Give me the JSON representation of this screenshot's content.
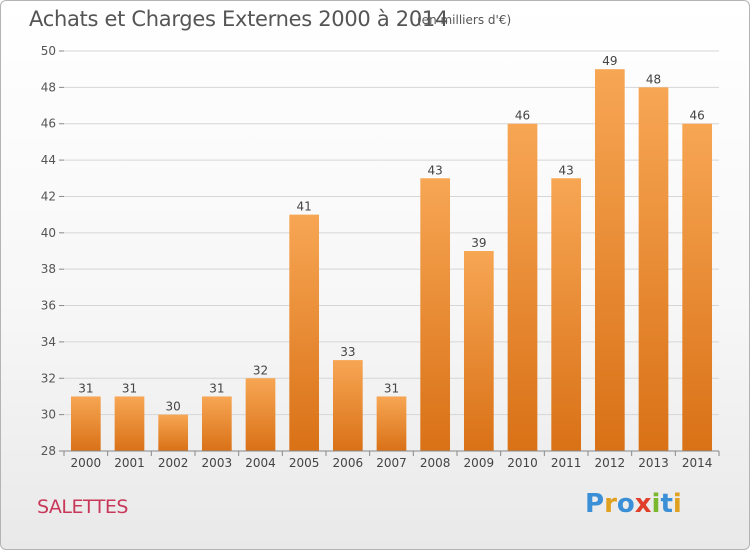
{
  "chart_data": {
    "type": "bar",
    "title": "Achats et Charges Externes 2000 à 2014",
    "subtitle": "(en milliers d'€)",
    "categories": [
      "2000",
      "2001",
      "2002",
      "2003",
      "2004",
      "2005",
      "2006",
      "2007",
      "2008",
      "2009",
      "2010",
      "2011",
      "2012",
      "2013",
      "2014"
    ],
    "values": [
      31,
      31,
      30,
      31,
      32,
      41,
      33,
      31,
      43,
      39,
      46,
      43,
      49,
      48,
      46
    ],
    "ylim": [
      28,
      50
    ],
    "yticks": [
      28,
      30,
      32,
      34,
      36,
      38,
      40,
      42,
      44,
      46,
      48,
      50
    ],
    "grid": true,
    "xlabel": "",
    "ylabel": ""
  },
  "footer": {
    "town": "SALETTES",
    "logo": "Proxiti",
    "logo_letters": [
      {
        "ch": "P",
        "color": "#3a8fd6"
      },
      {
        "ch": "r",
        "color": "#e0a020"
      },
      {
        "ch": "o",
        "color": "#3a8fd6"
      },
      {
        "ch": "x",
        "color": "#e0402a"
      },
      {
        "ch": "i",
        "color": "#7ab82e"
      },
      {
        "ch": "t",
        "color": "#3a8fd6"
      },
      {
        "ch": "i",
        "color": "#e0a020"
      }
    ]
  }
}
